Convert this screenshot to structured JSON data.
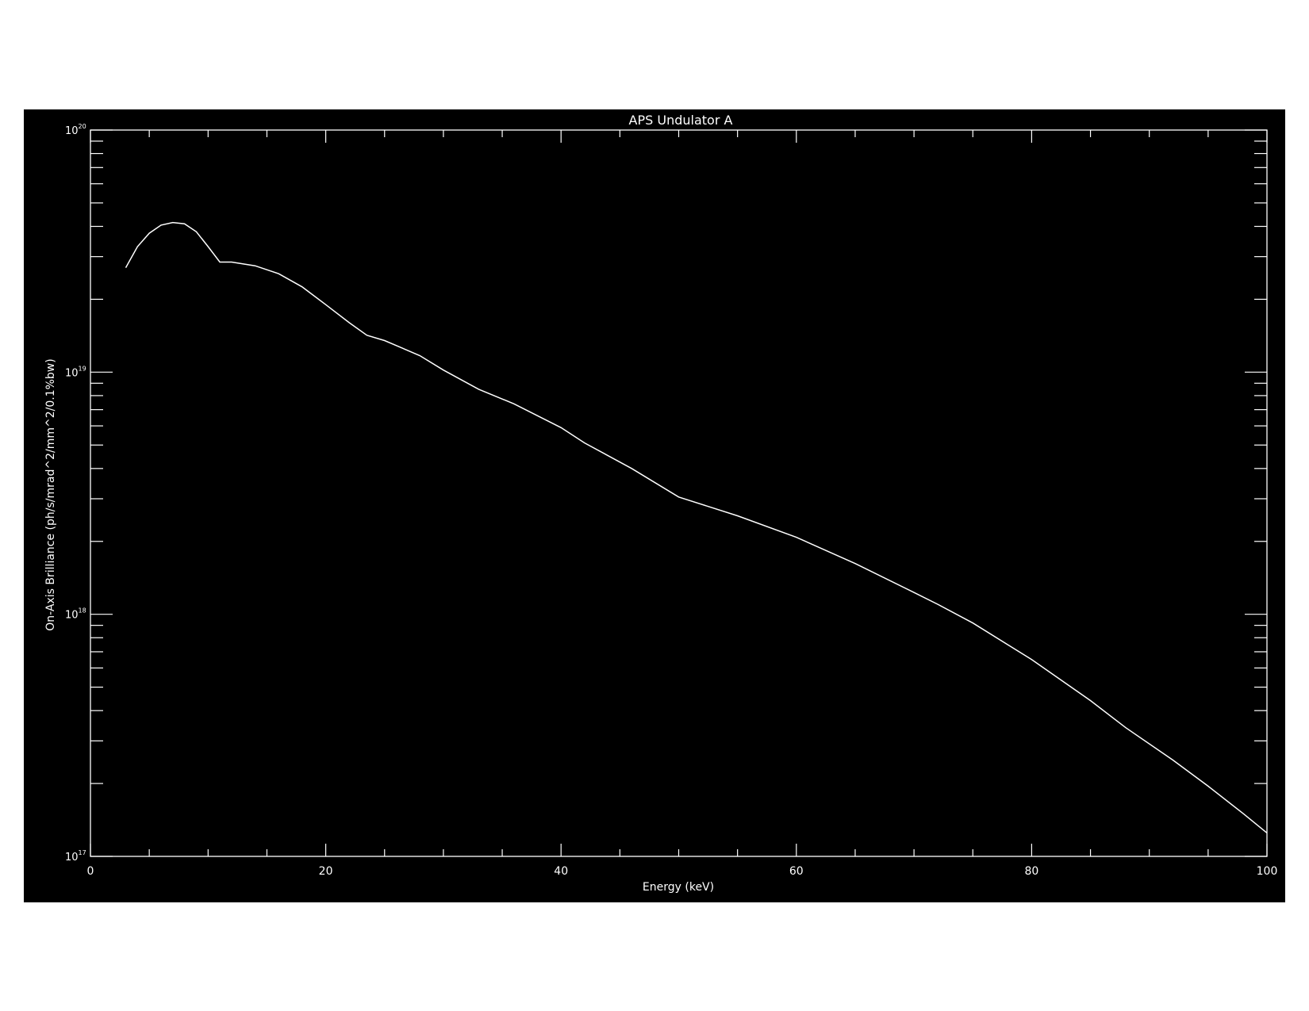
{
  "chart_data": {
    "type": "line",
    "title": "APS Undulator A",
    "xlabel": "Energy (keV)",
    "ylabel": "On-Axis Brilliance (ph/s/mrad^2/mm^2/0.1%bw)",
    "xlim": [
      0,
      100
    ],
    "ylim": [
      1e+17,
      1e+20
    ],
    "yscale": "log",
    "grid": false,
    "legend": "none",
    "x_ticks": [
      "0",
      "20",
      "40",
      "60",
      "80",
      "100"
    ],
    "y_ticks": [
      {
        "base": "10",
        "exp": "17"
      },
      {
        "base": "10",
        "exp": "18"
      },
      {
        "base": "10",
        "exp": "19"
      },
      {
        "base": "10",
        "exp": "20"
      }
    ],
    "colors": {
      "background": "#000000",
      "foreground": "#ffffff"
    },
    "series": [
      {
        "x": [
          3,
          4,
          5,
          6,
          7,
          8,
          9,
          10,
          11,
          12,
          14,
          16,
          18,
          20,
          22,
          23.5,
          25,
          28,
          30,
          33,
          36,
          40,
          42,
          46,
          50,
          55,
          60,
          65,
          70,
          72,
          75,
          80,
          85,
          88,
          92,
          95,
          98,
          100
        ],
        "values": [
          2.7e+19,
          3.3e+19,
          3.75e+19,
          4.05e+19,
          4.15e+19,
          4.1e+19,
          3.8e+19,
          3.3e+19,
          2.85e+19,
          2.85e+19,
          2.75e+19,
          2.55e+19,
          2.25e+19,
          1.9e+19,
          1.6e+19,
          1.42e+19,
          1.35e+19,
          1.17e+19,
          1.02e+19,
          8.5e+18,
          7.4e+18,
          5.9e+18,
          5.1e+18,
          4e+18,
          3.05e+18,
          2.55e+18,
          2.08e+18,
          1.62e+18,
          1.23e+18,
          1.1e+18,
          9.2e+17,
          6.5e+17,
          4.4e+17,
          3.4e+17,
          2.5e+17,
          1.95e+17,
          1.5e+17,
          1.25e+17
        ]
      }
    ]
  }
}
